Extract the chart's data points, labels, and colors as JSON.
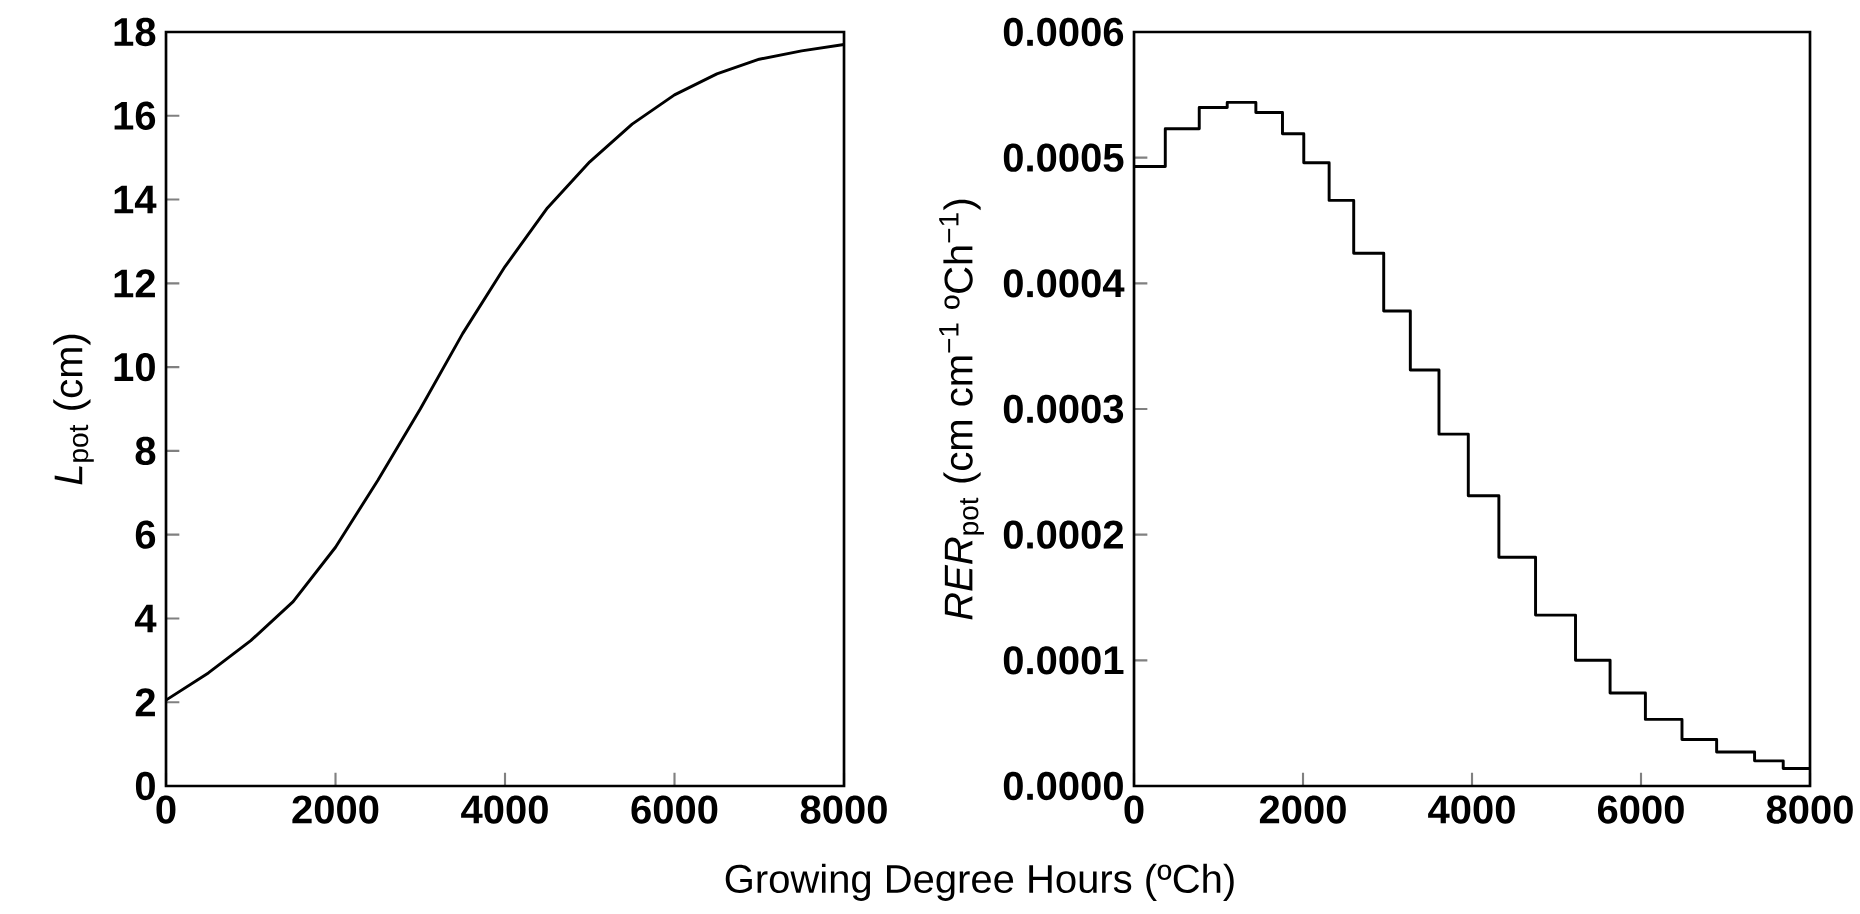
{
  "chart_data": [
    {
      "type": "line",
      "xlabel": "Growing Degree Hours (ºCh)",
      "ylabel": "*L*$_{pot}$ (cm)",
      "marker": "none",
      "color": "#000000",
      "x": [
        0,
        500,
        1000,
        1500,
        2000,
        2500,
        3000,
        3500,
        4000,
        4500,
        5000,
        5500,
        6000,
        6500,
        7000,
        7500,
        8000
      ],
      "values": [
        2.05,
        2.7,
        3.47,
        4.4,
        5.7,
        7.3,
        9.0,
        10.8,
        12.4,
        13.8,
        14.9,
        15.8,
        16.5,
        17.0,
        17.35,
        17.55,
        17.7
      ],
      "xlim": [
        0,
        8000
      ],
      "xticks": [
        0,
        2000,
        4000,
        6000,
        8000
      ],
      "ylim": [
        0,
        18
      ],
      "yticks": [
        0,
        2,
        4,
        6,
        8,
        10,
        12,
        14,
        16,
        18
      ]
    },
    {
      "type": "step",
      "ylabel": "*RER*$_{pot}$ (cm cm$^{−1}$ ºCh$^{−1}$)",
      "marker": "none",
      "color": "#000000",
      "x": [
        0,
        370,
        772,
        1103,
        1442,
        1757,
        2009,
        2309,
        2600,
        2955,
        3270,
        3609,
        3956,
        4318,
        4752,
        5225,
        5634,
        6052,
        6485,
        6895,
        7344,
        7683,
        8000
      ],
      "values": [
        0.000493,
        0.000523,
        0.00054,
        0.000544,
        0.000536,
        0.000519,
        0.000496,
        0.000466,
        0.000424,
        0.000378,
        0.000331,
        0.00028,
        0.000231,
        0.000182,
        0.000136,
        0.0001,
        7.4e-05,
        5.3e-05,
        3.7e-05,
        2.7e-05,
        2e-05,
        1.4e-05,
        1.4e-05
      ],
      "xlim": [
        0,
        8000
      ],
      "xticks": [
        0,
        2000,
        4000,
        6000,
        8000
      ],
      "ylim": [
        0,
        0.0006
      ],
      "yticks": [
        {
          "value": 0,
          "label": "0.0000"
        },
        0.0001,
        0.0002,
        0.0003,
        0.0004,
        0.0005,
        0.0006
      ]
    }
  ]
}
